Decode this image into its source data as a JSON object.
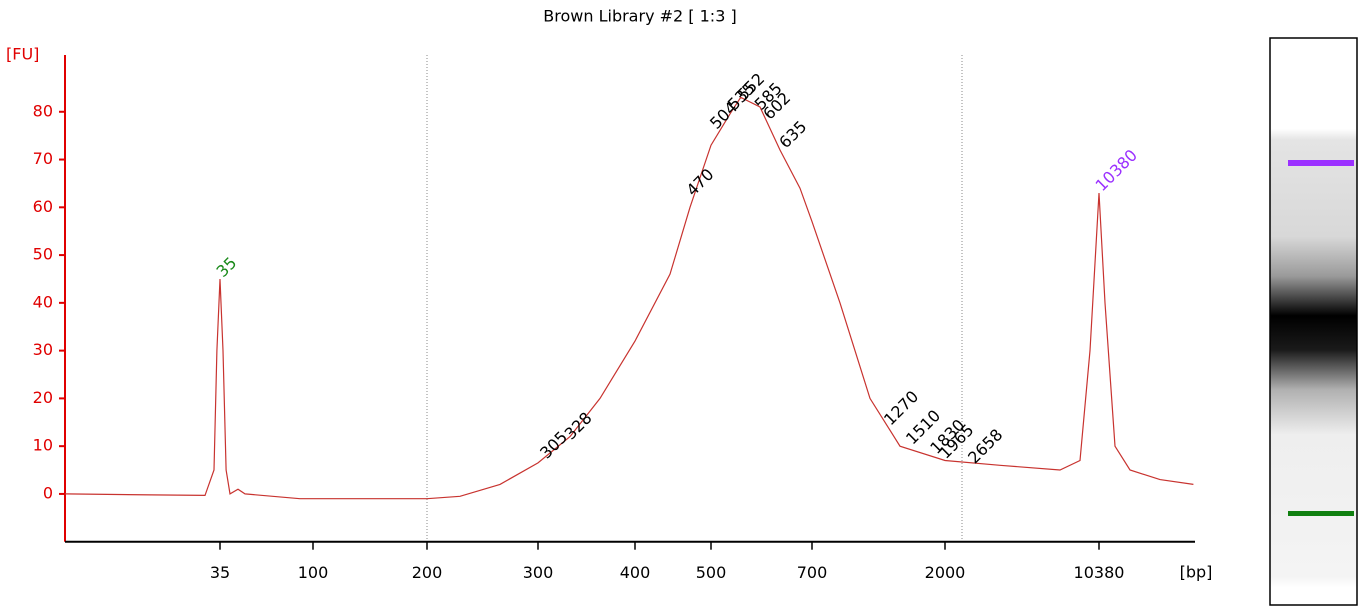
{
  "chart_data": {
    "type": "line",
    "title": "Brown Library #2  [ 1:3 ]",
    "y_label": "[FU]",
    "x_label": "[bp]",
    "axis_color": "#e00000",
    "color": "#c8332f",
    "xlim": [
      6,
      29000
    ],
    "xticks": [
      35,
      100,
      200,
      300,
      400,
      500,
      700,
      2000,
      10380
    ],
    "ylim": [
      -10,
      90
    ],
    "yticks": [
      0,
      10,
      20,
      30,
      40,
      50,
      60,
      70,
      80
    ],
    "x": [
      6,
      16,
      29.5,
      32.7,
      33.8,
      35,
      36.2,
      37.5,
      39.2,
      42.9,
      46.4,
      86.3,
      169.7,
      200,
      225.6,
      261.1,
      300,
      329.9,
      360.6,
      400,
      443.3,
      470.1,
      500,
      535,
      552,
      588.7,
      629.2,
      672.6,
      700,
      873,
      1106,
      1402,
      2000,
      3601,
      6841,
      8471,
      9423,
      10380,
      11068,
      12319,
      14464,
      19948,
      28500
    ],
    "values": [
      0,
      -0.2,
      -0.3,
      5,
      30,
      45,
      30,
      5,
      0,
      1,
      0,
      -1,
      -1,
      -1,
      -0.5,
      2,
      6.5,
      12,
      20,
      32,
      46,
      60,
      73,
      80,
      83,
      81,
      72,
      64,
      57,
      40,
      20,
      10,
      7,
      6,
      5,
      7,
      30,
      63,
      40,
      10,
      5,
      3,
      2
    ],
    "peaks": {
      "x": [
        35,
        305,
        328,
        470,
        504,
        535,
        552,
        585,
        602,
        635,
        1270,
        1510,
        1830,
        1965,
        2658,
        10380
      ],
      "y": [
        45,
        7,
        11,
        62,
        76,
        80,
        82,
        80,
        78,
        72,
        14,
        10,
        8,
        7,
        6,
        63
      ],
      "colors": [
        "#1a8a1a",
        "#000000",
        "#000000",
        "#000000",
        "#000000",
        "#000000",
        "#000000",
        "#000000",
        "#000000",
        "#000000",
        "#000000",
        "#000000",
        "#000000",
        "#000000",
        "#000000",
        "#9b30ff"
      ]
    }
  }
}
